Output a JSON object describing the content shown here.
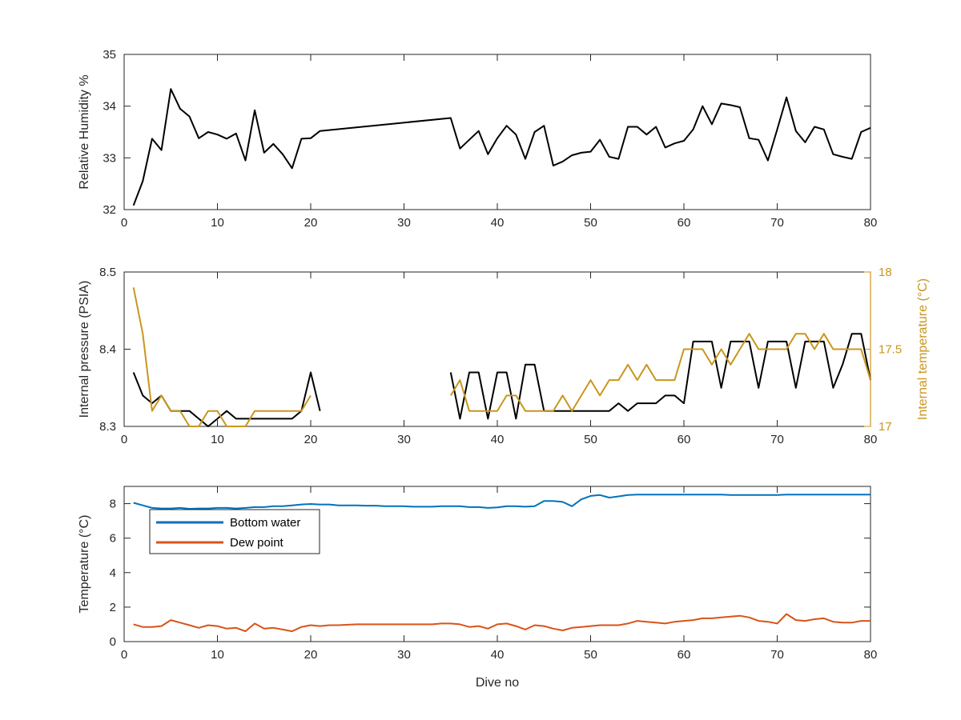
{
  "colors": {
    "axis": "#262626",
    "black_series": "#000000",
    "internal_temperature": "#C9961F",
    "bottom_water": "#0072BD",
    "dew_point": "#D95319"
  },
  "chart_data": [
    {
      "type": "line",
      "ylabel": "Relative Humidity %",
      "xlim": [
        0,
        80
      ],
      "ylim": [
        32,
        35
      ],
      "xticks": [
        0,
        10,
        20,
        30,
        40,
        50,
        60,
        70,
        80
      ],
      "yticks": [
        32,
        33,
        34,
        35
      ],
      "grid": false,
      "series": [
        {
          "x": [
            1,
            2,
            3,
            4,
            5,
            6,
            7,
            8,
            9,
            10,
            11,
            12,
            13,
            14,
            15,
            16,
            17,
            18,
            19,
            20,
            21,
            35,
            36,
            37,
            38,
            39,
            40,
            41,
            42,
            43,
            44,
            45,
            46,
            47,
            48,
            49,
            50,
            51,
            52,
            53,
            54,
            55,
            56,
            57,
            58,
            59,
            60,
            61,
            62,
            63,
            64,
            65,
            66,
            67,
            68,
            69,
            70,
            71,
            72,
            73,
            74,
            75,
            76,
            77,
            78,
            79,
            80
          ],
          "y": [
            32.08,
            32.55,
            33.37,
            33.15,
            34.33,
            33.95,
            33.8,
            33.38,
            33.5,
            33.45,
            33.37,
            33.47,
            32.95,
            33.92,
            33.1,
            33.27,
            33.07,
            32.8,
            33.37,
            33.38,
            33.52,
            33.77,
            33.18,
            33.35,
            33.52,
            33.07,
            33.38,
            33.62,
            33.45,
            32.98,
            33.5,
            33.62,
            32.85,
            32.93,
            33.05,
            33.1,
            33.12,
            33.35,
            33.02,
            32.98,
            33.6,
            33.6,
            33.45,
            33.6,
            33.2,
            33.28,
            33.33,
            33.55,
            34.0,
            33.65,
            34.05,
            34.02,
            33.98,
            33.38,
            33.35,
            32.95,
            33.55,
            34.17,
            33.52,
            33.3,
            33.6,
            33.55,
            33.07,
            33.02,
            32.98,
            33.5,
            33.58
          ]
        }
      ]
    },
    {
      "type": "line",
      "ylabel": "Internal pressure (PSIA)",
      "y2label": "Internal temperature (°C)",
      "xlim": [
        0,
        80
      ],
      "ylim": [
        8.3,
        8.5
      ],
      "y2lim": [
        17,
        18
      ],
      "xticks": [
        0,
        10,
        20,
        30,
        40,
        50,
        60,
        70,
        80
      ],
      "yticks": [
        8.3,
        8.4,
        8.5
      ],
      "yticklabels": [
        "8.3",
        "8.4",
        "8.5"
      ],
      "y2ticks": [
        17,
        17.5,
        18
      ],
      "y2ticklabels": [
        "17",
        "17.5",
        "18"
      ],
      "grid": false,
      "series": [
        {
          "axis": "left",
          "x": [
            1,
            2,
            3,
            4,
            5,
            6,
            7,
            8,
            9,
            10,
            11,
            12,
            13,
            14,
            15,
            16,
            17,
            18,
            19,
            20,
            21,
            35,
            36,
            37,
            38,
            39,
            40,
            41,
            42,
            43,
            44,
            45,
            46,
            47,
            48,
            49,
            50,
            51,
            52,
            53,
            54,
            55,
            56,
            57,
            58,
            59,
            60,
            61,
            62,
            63,
            64,
            65,
            66,
            67,
            68,
            69,
            70,
            71,
            72,
            73,
            74,
            75,
            76,
            77,
            78,
            79,
            80
          ],
          "y": [
            8.37,
            8.34,
            8.33,
            8.34,
            8.32,
            8.32,
            8.32,
            8.31,
            8.3,
            8.31,
            8.32,
            8.31,
            8.31,
            8.31,
            8.31,
            8.31,
            8.31,
            8.31,
            8.32,
            8.37,
            8.32,
            8.37,
            8.31,
            8.37,
            8.37,
            8.31,
            8.37,
            8.37,
            8.31,
            8.38,
            8.38,
            8.32,
            8.32,
            8.32,
            8.32,
            8.32,
            8.32,
            8.32,
            8.32,
            8.33,
            8.32,
            8.33,
            8.33,
            8.33,
            8.34,
            8.34,
            8.33,
            8.41,
            8.41,
            8.41,
            8.35,
            8.41,
            8.41,
            8.41,
            8.35,
            8.41,
            8.41,
            8.41,
            8.35,
            8.41,
            8.41,
            8.41,
            8.35,
            8.38,
            8.42,
            8.42,
            8.36
          ]
        },
        {
          "axis": "right",
          "x": [
            1,
            2,
            3,
            4,
            5,
            6,
            7,
            8,
            9,
            10,
            11,
            12,
            13,
            14,
            15,
            16,
            17,
            18,
            19,
            20,
            35,
            36,
            37,
            38,
            39,
            40,
            41,
            42,
            43,
            44,
            45,
            46,
            47,
            48,
            49,
            50,
            51,
            52,
            53,
            54,
            55,
            56,
            57,
            58,
            59,
            60,
            61,
            62,
            63,
            64,
            65,
            66,
            67,
            68,
            69,
            70,
            71,
            72,
            73,
            74,
            75,
            76,
            77,
            78,
            79,
            80
          ],
          "y": [
            17.9,
            17.6,
            17.1,
            17.2,
            17.1,
            17.1,
            17.0,
            17.0,
            17.1,
            17.1,
            17.0,
            17.0,
            17.0,
            17.1,
            17.1,
            17.1,
            17.1,
            17.1,
            17.1,
            17.2,
            17.2,
            17.3,
            17.1,
            17.1,
            17.1,
            17.1,
            17.2,
            17.2,
            17.1,
            17.1,
            17.1,
            17.1,
            17.2,
            17.1,
            17.2,
            17.3,
            17.2,
            17.3,
            17.3,
            17.4,
            17.3,
            17.4,
            17.3,
            17.3,
            17.3,
            17.5,
            17.5,
            17.5,
            17.4,
            17.5,
            17.4,
            17.5,
            17.6,
            17.5,
            17.5,
            17.5,
            17.5,
            17.6,
            17.6,
            17.5,
            17.6,
            17.5,
            17.5,
            17.5,
            17.5,
            17.3
          ]
        }
      ]
    },
    {
      "type": "line",
      "xlabel": "Dive no",
      "ylabel": "Temperature (°C)",
      "xlim": [
        0,
        80
      ],
      "ylim": [
        0,
        9
      ],
      "xticks": [
        0,
        10,
        20,
        30,
        40,
        50,
        60,
        70,
        80
      ],
      "yticks": [
        0,
        2,
        4,
        6,
        8
      ],
      "grid": false,
      "legend": "top-left",
      "series": [
        {
          "name": "Bottom water",
          "x": [
            1,
            2,
            3,
            4,
            5,
            6,
            7,
            8,
            9,
            10,
            11,
            12,
            13,
            14,
            15,
            16,
            17,
            18,
            19,
            20,
            21,
            22,
            23,
            24,
            25,
            26,
            27,
            28,
            29,
            30,
            31,
            32,
            33,
            34,
            35,
            36,
            37,
            38,
            39,
            40,
            41,
            42,
            43,
            44,
            45,
            46,
            47,
            48,
            49,
            50,
            51,
            52,
            53,
            54,
            55,
            56,
            57,
            58,
            59,
            60,
            61,
            62,
            63,
            64,
            65,
            66,
            67,
            68,
            69,
            70,
            71,
            72,
            73,
            74,
            75,
            76,
            77,
            78,
            79,
            80
          ],
          "y": [
            8.05,
            7.9,
            7.75,
            7.72,
            7.72,
            7.75,
            7.7,
            7.72,
            7.72,
            7.75,
            7.75,
            7.72,
            7.75,
            7.8,
            7.8,
            7.85,
            7.85,
            7.9,
            7.95,
            7.98,
            7.95,
            7.95,
            7.9,
            7.9,
            7.9,
            7.88,
            7.88,
            7.85,
            7.85,
            7.85,
            7.82,
            7.82,
            7.82,
            7.85,
            7.85,
            7.85,
            7.8,
            7.8,
            7.75,
            7.78,
            7.85,
            7.85,
            7.82,
            7.85,
            8.15,
            8.15,
            8.1,
            7.85,
            8.25,
            8.45,
            8.5,
            8.35,
            8.42,
            8.5,
            8.52,
            8.52,
            8.52,
            8.52,
            8.52,
            8.52,
            8.52,
            8.52,
            8.52,
            8.52,
            8.5,
            8.5,
            8.5,
            8.5,
            8.5,
            8.5,
            8.52,
            8.52,
            8.52,
            8.52,
            8.52,
            8.52,
            8.52,
            8.52,
            8.52,
            8.52
          ]
        },
        {
          "name": "Dew point",
          "x": [
            1,
            2,
            3,
            4,
            5,
            6,
            7,
            8,
            9,
            10,
            11,
            12,
            13,
            14,
            15,
            16,
            17,
            18,
            19,
            20,
            21,
            22,
            23,
            24,
            25,
            26,
            27,
            28,
            29,
            30,
            31,
            32,
            33,
            34,
            35,
            36,
            37,
            38,
            39,
            40,
            41,
            42,
            43,
            44,
            45,
            46,
            47,
            48,
            49,
            50,
            51,
            52,
            53,
            54,
            55,
            56,
            57,
            58,
            59,
            60,
            61,
            62,
            63,
            64,
            65,
            66,
            67,
            68,
            69,
            70,
            71,
            72,
            73,
            74,
            75,
            76,
            77,
            78,
            79,
            80
          ],
          "y": [
            1.0,
            0.85,
            0.85,
            0.9,
            1.25,
            1.1,
            0.95,
            0.8,
            0.95,
            0.9,
            0.75,
            0.8,
            0.6,
            1.05,
            0.75,
            0.8,
            0.7,
            0.6,
            0.85,
            0.95,
            0.9,
            0.95,
            0.95,
            0.98,
            1.0,
            1.0,
            1.0,
            1.0,
            1.0,
            1.0,
            1.0,
            1.0,
            1.0,
            1.05,
            1.05,
            1.0,
            0.85,
            0.9,
            0.75,
            1.0,
            1.05,
            0.9,
            0.7,
            0.95,
            0.9,
            0.75,
            0.65,
            0.8,
            0.85,
            0.9,
            0.95,
            0.95,
            0.95,
            1.05,
            1.2,
            1.15,
            1.1,
            1.05,
            1.15,
            1.2,
            1.25,
            1.35,
            1.35,
            1.4,
            1.45,
            1.5,
            1.4,
            1.2,
            1.15,
            1.05,
            1.6,
            1.25,
            1.2,
            1.3,
            1.35,
            1.15,
            1.1,
            1.1,
            1.2,
            1.2
          ]
        }
      ]
    }
  ]
}
